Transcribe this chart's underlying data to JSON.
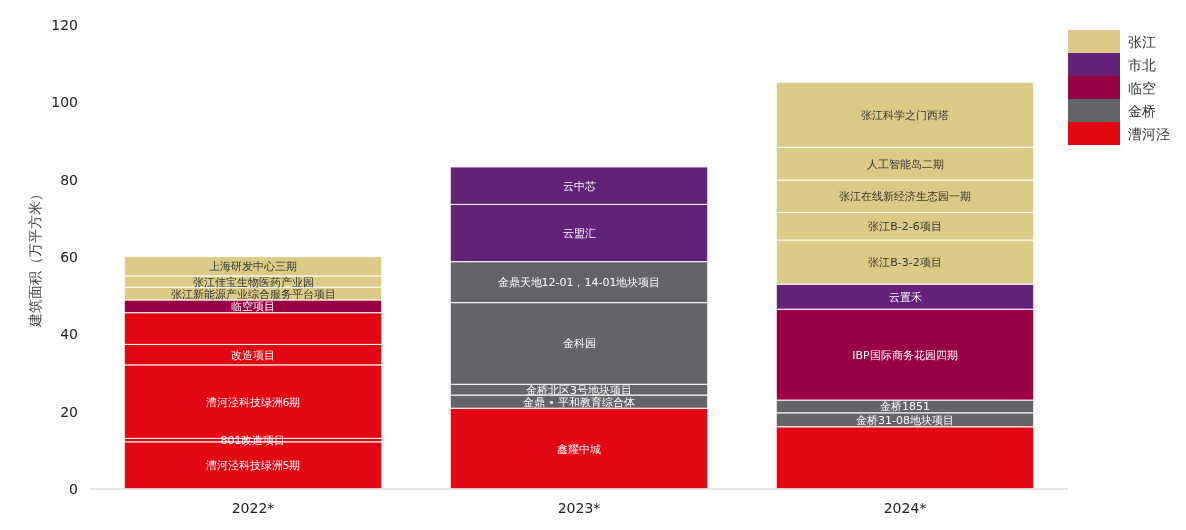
{
  "chart_data": {
    "type": "bar",
    "stacked": true,
    "ylabel": "建筑面积（万平方米）",
    "categories": [
      "2022*",
      "2023*",
      "2024*"
    ],
    "ylim": [
      0,
      120
    ],
    "yticks": [
      0,
      20,
      40,
      60,
      80,
      100,
      120
    ],
    "grid": false,
    "legend": "top right",
    "data_labels": false,
    "series": [
      {
        "name": "张江",
        "color": "#dccb86",
        "values": [
          null,
          null,
          null
        ]
      },
      {
        "name": "市北",
        "color": "#612278",
        "values": [
          null,
          null,
          null
        ]
      },
      {
        "name": "临空",
        "color": "#990044",
        "values": [
          null,
          null,
          null
        ]
      },
      {
        "name": "金桥",
        "color": "#636468",
        "values": [
          null,
          null,
          null
        ]
      },
      {
        "name": "漕河泾",
        "color": "#e30613",
        "values": [
          null,
          null,
          null
        ]
      },
      {
        "name": "漕河泾科技绿洲5期",
        "color": "#e30613",
        "values": [
          12.2,
          null,
          null
        ]
      },
      {
        "name": "801改造项目",
        "color": "#e30613",
        "values": [
          0.9,
          null,
          null
        ]
      },
      {
        "name": "漕河泾科技绿洲6期",
        "color": "#e30613",
        "values": [
          19.0,
          null,
          null
        ]
      },
      {
        "name": "改造项目",
        "color": "#e30613",
        "values": [
          5.3,
          null,
          null
        ]
      },
      {
        "color": "#e30613",
        "values": [
          8.2,
          null,
          null
        ]
      },
      {
        "name": "临空项目",
        "color": "#990044",
        "values": [
          3.3,
          null,
          null
        ]
      },
      {
        "name": "张江新能源产业综合服务平台项目",
        "color": "#dccb86",
        "values": [
          3.3,
          null,
          null
        ]
      },
      {
        "name": "张江佳宝生物医药产业园",
        "color": "#dccb86",
        "values": [
          2.9,
          null,
          null
        ]
      },
      {
        "name": "上海研发中心三期",
        "color": "#dccb86",
        "values": [
          5.0,
          null,
          null
        ]
      },
      {
        "name": "鑫耀中城",
        "color": "#e30613",
        "values": [
          null,
          20.9,
          null
        ]
      },
      {
        "name": "金鼎 • 平和教育综合体",
        "color": "#636468",
        "values": [
          null,
          3.4,
          null
        ]
      },
      {
        "name": "金桥北区3号地块项目",
        "color": "#636468",
        "values": [
          null,
          2.8,
          null
        ]
      },
      {
        "name": "金科园",
        "color": "#636468",
        "values": [
          null,
          21.1,
          null
        ]
      },
      {
        "name": "金鼎天地12-01，14-01地块项目",
        "color": "#636468",
        "values": [
          null,
          10.6,
          null
        ]
      },
      {
        "name": "云盟汇",
        "color": "#612278",
        "values": [
          null,
          14.8,
          null
        ]
      },
      {
        "name": "云中芯",
        "color": "#612278",
        "values": [
          null,
          9.7,
          null
        ]
      },
      {
        "color": "#e30613",
        "values": [
          null,
          null,
          16.1
        ]
      },
      {
        "name": "金桥31-08地块项目",
        "color": "#636468",
        "values": [
          null,
          null,
          3.6
        ]
      },
      {
        "name": "金桥1851",
        "color": "#636468",
        "values": [
          null,
          null,
          3.3
        ]
      },
      {
        "name": "IBP国际商务花园四期",
        "color": "#990044",
        "values": [
          null,
          null,
          23.5
        ]
      },
      {
        "name": "云置禾",
        "color": "#612278",
        "values": [
          null,
          null,
          6.5
        ]
      },
      {
        "name": "张江B-3-2项目",
        "color": "#dccb86",
        "values": [
          null,
          null,
          11.4
        ]
      },
      {
        "name": "张江B-2-6项目",
        "color": "#dccb86",
        "values": [
          null,
          null,
          7.1
        ]
      },
      {
        "name": "张江在线新经济生态园一期",
        "color": "#dccb86",
        "values": [
          null,
          null,
          8.4
        ]
      },
      {
        "name": "人工智能岛二期",
        "color": "#dccb86",
        "values": [
          null,
          null,
          8.5
        ]
      },
      {
        "name": "张江科学之门西塔",
        "color": "#dccb86",
        "values": [
          null,
          null,
          16.8
        ]
      }
    ]
  }
}
